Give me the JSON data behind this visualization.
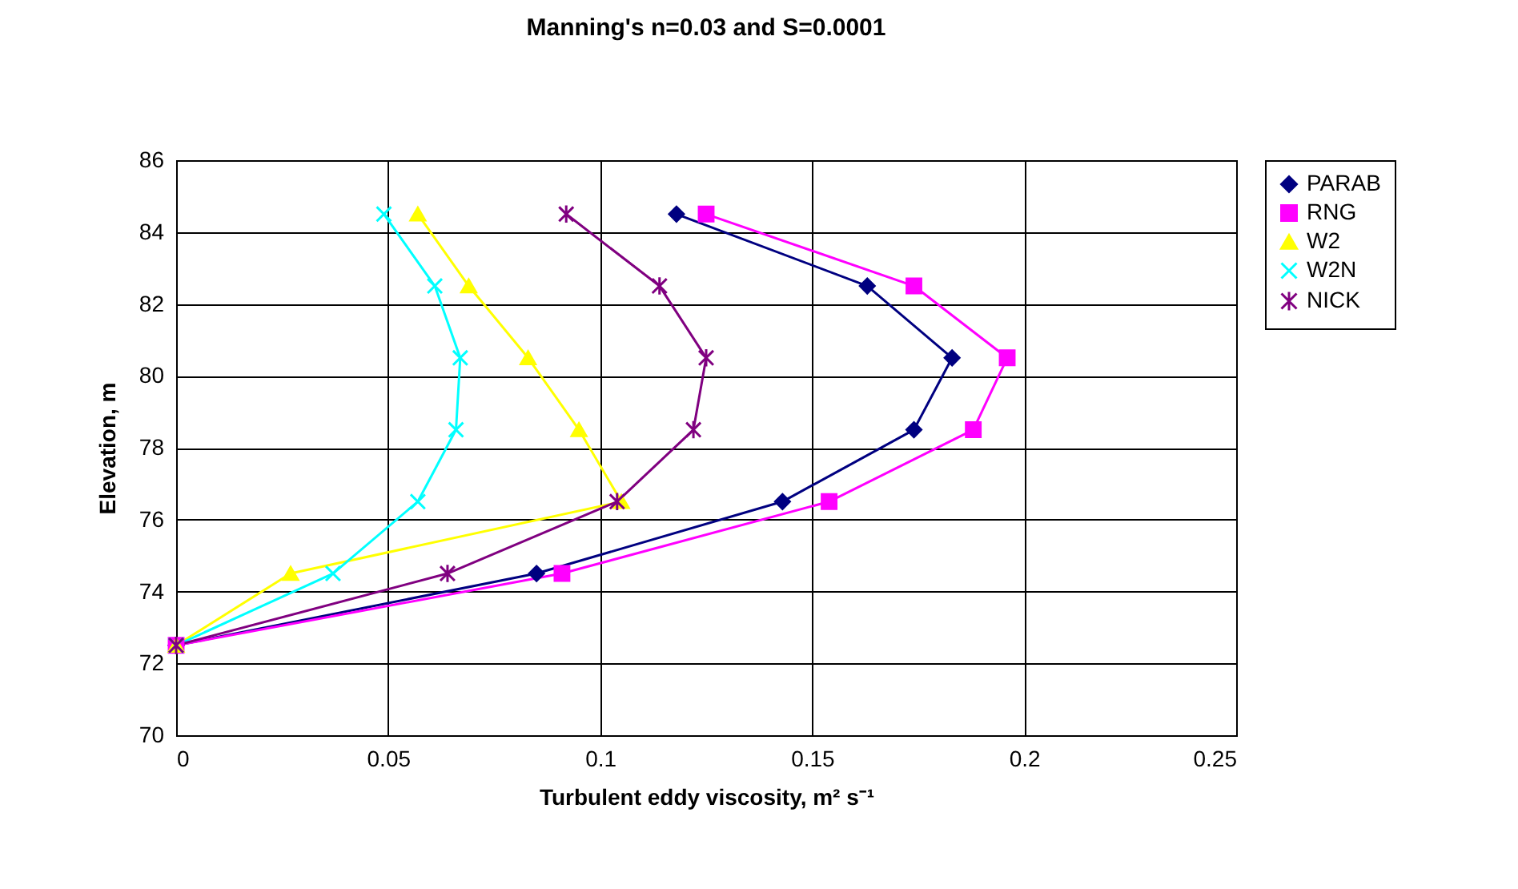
{
  "chart_data": {
    "type": "line",
    "title": "Manning's n=0.03 and S=0.0001",
    "xlabel": "Turbulent eddy viscosity, m² s⁻¹",
    "ylabel": "Elevation, m",
    "xlim": [
      0,
      0.25
    ],
    "xticks": [
      0,
      0.05,
      0.1,
      0.15,
      0.2,
      0.25
    ],
    "ylim": [
      70,
      86
    ],
    "yticks": [
      70,
      72,
      74,
      76,
      78,
      80,
      82,
      84,
      86
    ],
    "grid": true,
    "legend": "right",
    "series": [
      {
        "name": "PARAB",
        "color": "#000080",
        "marker": "diamond",
        "x": [
          0,
          0.085,
          0.143,
          0.174,
          0.183,
          0.163,
          0.118
        ],
        "values": [
          72.5,
          74.5,
          76.5,
          78.5,
          80.5,
          82.5,
          84.5
        ]
      },
      {
        "name": "RNG",
        "color": "#ff00ff",
        "marker": "square",
        "x": [
          0,
          0.091,
          0.154,
          0.188,
          0.196,
          0.174,
          0.125
        ],
        "values": [
          72.5,
          74.5,
          76.5,
          78.5,
          80.5,
          82.5,
          84.5
        ]
      },
      {
        "name": "W2",
        "color": "#ffff00",
        "marker": "triangle",
        "x": [
          0,
          0.027,
          0.105,
          0.095,
          0.083,
          0.069,
          0.057
        ],
        "values": [
          72.5,
          74.5,
          76.5,
          78.5,
          80.5,
          82.5,
          84.5
        ]
      },
      {
        "name": "W2N",
        "color": "#00ffff",
        "marker": "cross",
        "x": [
          0,
          0.037,
          0.057,
          0.066,
          0.067,
          0.061,
          0.049
        ],
        "values": [
          72.5,
          74.5,
          76.5,
          78.5,
          80.5,
          82.5,
          84.5
        ]
      },
      {
        "name": "NICK",
        "color": "#800080",
        "marker": "cross",
        "x": [
          0,
          0.064,
          0.104,
          0.122,
          0.125,
          0.114,
          0.092
        ],
        "values": [
          72.5,
          74.5,
          76.5,
          78.5,
          80.5,
          82.5,
          84.5
        ]
      }
    ]
  }
}
